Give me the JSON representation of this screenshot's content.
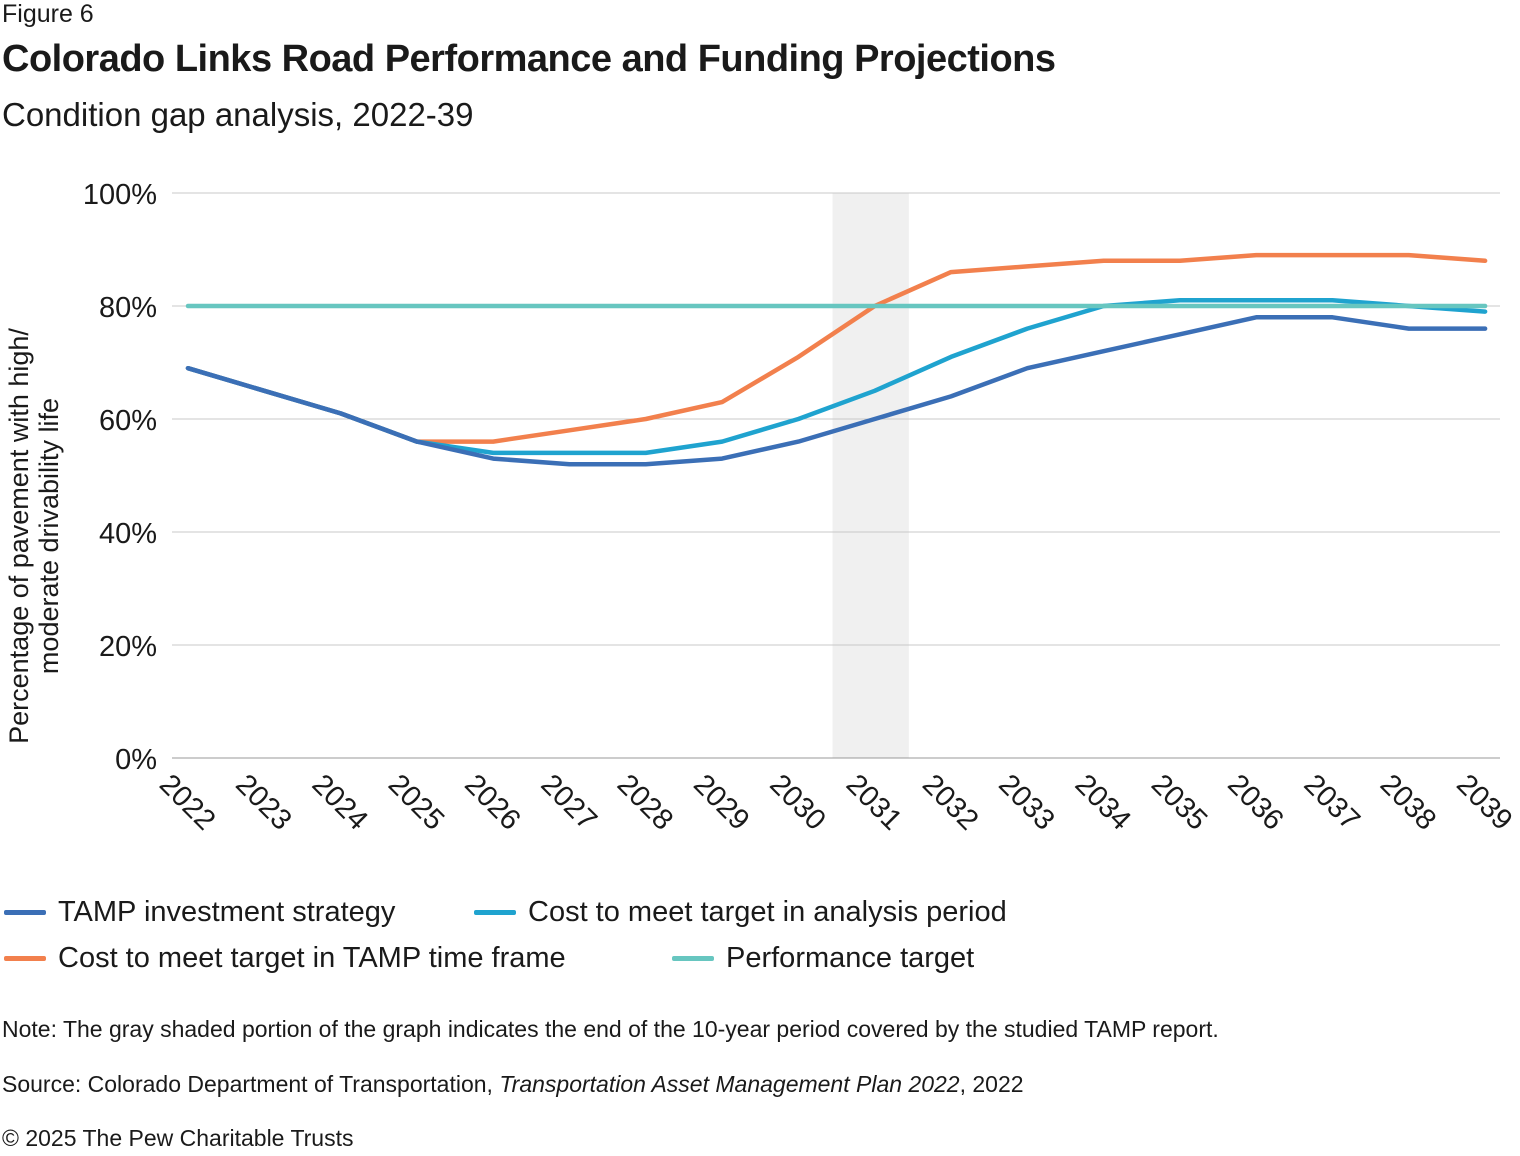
{
  "figure_label": "Figure 6",
  "title": "Colorado Links Road Performance and Funding Projections",
  "subtitle": "Condition gap analysis, 2022-39",
  "note": "Note: The gray shaded portion of the graph indicates the end of the 10-year period covered by the studied TAMP report.",
  "source": {
    "prefix": "Source: Colorado Department of Transportation, ",
    "italic": "Transportation Asset Management Plan 2022",
    "suffix": ", 2022"
  },
  "copyright": "© 2025 The Pew Charitable Trusts",
  "colors": {
    "tamp": "#3b6fb6",
    "analysis": "#1fa3cf",
    "tamp_time": "#f2804d",
    "target": "#67c6c0",
    "shade": "#f0f0f0",
    "grid": "#c8c8c8"
  },
  "chart_data": {
    "type": "line",
    "ylabel_line1": "Percentage of pavement with high/",
    "ylabel_line2": "moderate drivability life",
    "ylim": [
      0,
      100
    ],
    "yticks": [
      0,
      20,
      40,
      60,
      80,
      100
    ],
    "ytick_labels": [
      "0%",
      "20%",
      "40%",
      "60%",
      "80%",
      "100%"
    ],
    "categories": [
      "2022",
      "2023",
      "2024",
      "2025",
      "2026",
      "2027",
      "2028",
      "2029",
      "2030",
      "2031",
      "2032",
      "2033",
      "2034",
      "2035",
      "2036",
      "2037",
      "2038",
      "2039"
    ],
    "shaded_span": [
      "2030",
      "2031"
    ],
    "series": [
      {
        "key": "tamp",
        "name": "TAMP investment strategy",
        "values": [
          69,
          65,
          61,
          56,
          53,
          52,
          52,
          53,
          56,
          60,
          64,
          69,
          72,
          75,
          78,
          78,
          76,
          76
        ]
      },
      {
        "key": "analysis",
        "name": "Cost to meet target in analysis period",
        "values": [
          69,
          65,
          61,
          56,
          54,
          54,
          54,
          56,
          60,
          65,
          71,
          76,
          80,
          81,
          81,
          81,
          80,
          79
        ]
      },
      {
        "key": "tamp_time",
        "name": "Cost to meet target in TAMP time frame",
        "values": [
          69,
          65,
          61,
          56,
          56,
          58,
          60,
          63,
          71,
          80,
          86,
          87,
          88,
          88,
          89,
          89,
          89,
          88
        ]
      },
      {
        "key": "target",
        "name": "Performance target",
        "values": [
          80,
          80,
          80,
          80,
          80,
          80,
          80,
          80,
          80,
          80,
          80,
          80,
          80,
          80,
          80,
          80,
          80,
          80
        ]
      }
    ]
  }
}
